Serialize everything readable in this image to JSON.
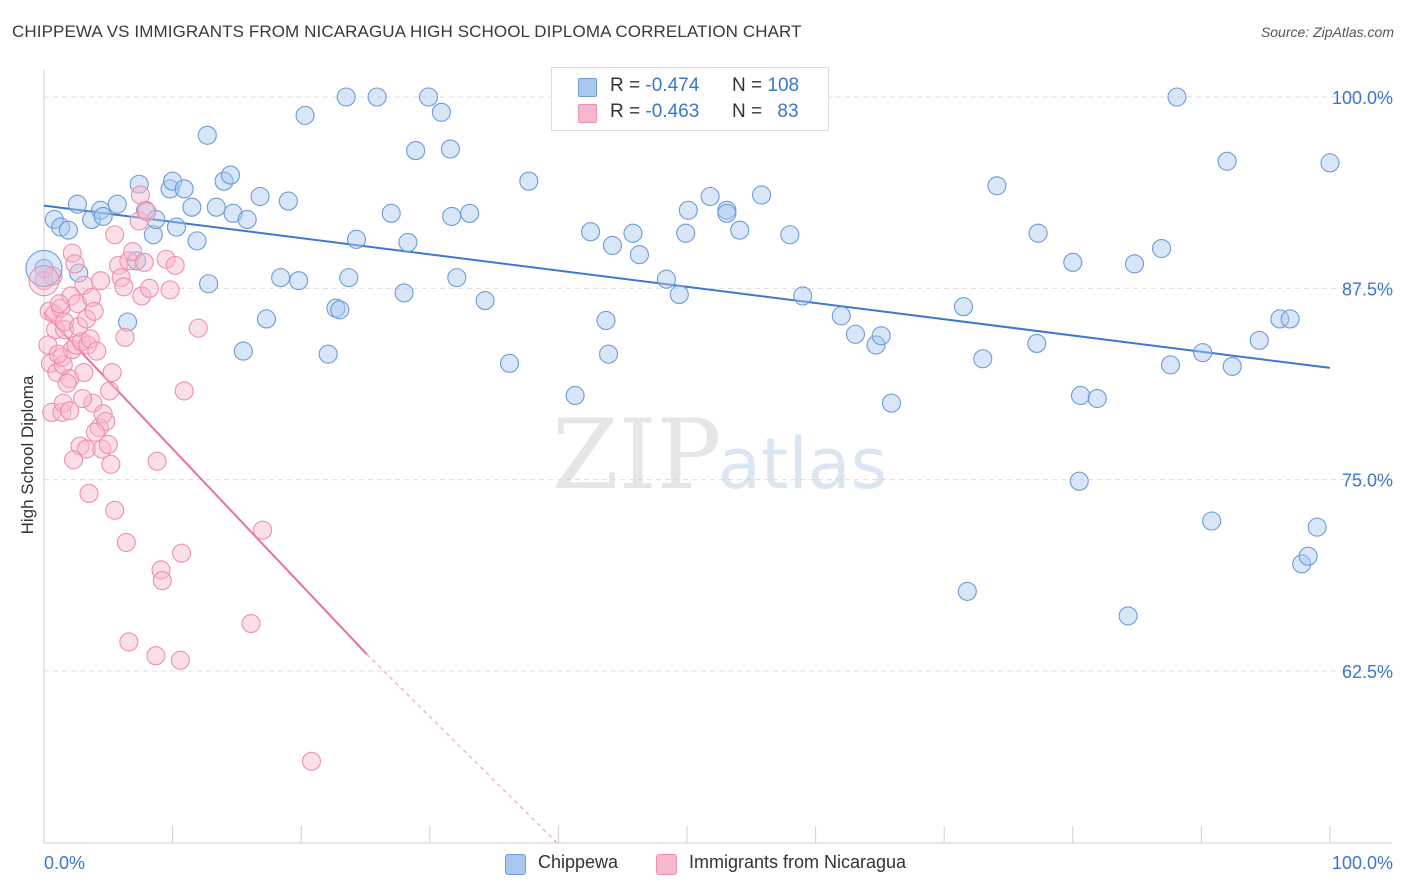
{
  "title": "CHIPPEWA VS IMMIGRANTS FROM NICARAGUA HIGH SCHOOL DIPLOMA CORRELATION CHART",
  "source": "Source: ZipAtlas.com",
  "legend": {
    "rows": [
      {
        "r_label": "R =",
        "r_value": "-0.474",
        "n_label": "N =",
        "n_value": "108"
      },
      {
        "r_label": "R =",
        "r_value": "-0.463",
        "n_label": "N =",
        "n_value": "83"
      }
    ]
  },
  "bottom_legend": {
    "series1": "Chippewa",
    "series2": "Immigrants from Nicaragua"
  },
  "watermark": {
    "part1": "ZIP",
    "part2": "atlas"
  },
  "colors": {
    "blue_fill": "#a9c8ef",
    "blue_stroke": "#6c9bd8",
    "blue_line": "#3d78cf",
    "pink_fill": "#f6b8cc",
    "pink_stroke": "#ee8fab",
    "pink_line": "#e8709a",
    "axis_value": "#3a76cc"
  },
  "chart_data": {
    "type": "scatter",
    "title": "CHIPPEWA VS IMMIGRANTS FROM NICARAGUA HIGH SCHOOL DIPLOMA CORRELATION CHART",
    "xlabel": "",
    "ylabel": "High School Diploma",
    "xlim": [
      0,
      100
    ],
    "ylim": [
      50.5,
      100.5
    ],
    "x_tick_labels": [
      "0.0%",
      "100.0%"
    ],
    "y_ticks": [
      100,
      87.5,
      75,
      62.5
    ],
    "y_tick_labels": [
      "100.0%",
      "87.5%",
      "75.0%",
      "62.5%"
    ],
    "grid": true,
    "legend_position": "top-center",
    "series": [
      {
        "name": "Chippewa",
        "color": "#a9c8ef",
        "trend": {
          "x": [
            0,
            100
          ],
          "y": [
            92.9,
            82.3
          ]
        },
        "points": [
          [
            0.0,
            88.8
          ],
          [
            0.8,
            92.0
          ],
          [
            1.3,
            91.5
          ],
          [
            1.9,
            91.3
          ],
          [
            2.6,
            93.0
          ],
          [
            2.7,
            88.5
          ],
          [
            3.7,
            92.0
          ],
          [
            4.4,
            92.6
          ],
          [
            4.6,
            92.2
          ],
          [
            5.7,
            93.0
          ],
          [
            6.5,
            85.3
          ],
          [
            7.2,
            89.3
          ],
          [
            7.4,
            94.3
          ],
          [
            7.9,
            92.6
          ],
          [
            8.5,
            91.0
          ],
          [
            8.7,
            92.0
          ],
          [
            9.8,
            94.0
          ],
          [
            10.0,
            94.5
          ],
          [
            10.3,
            91.5
          ],
          [
            10.9,
            94.0
          ],
          [
            11.5,
            92.8
          ],
          [
            11.9,
            90.6
          ],
          [
            12.7,
            97.5
          ],
          [
            12.8,
            87.8
          ],
          [
            13.4,
            92.8
          ],
          [
            14.0,
            94.5
          ],
          [
            14.5,
            94.9
          ],
          [
            14.7,
            92.4
          ],
          [
            15.5,
            83.4
          ],
          [
            15.8,
            92.0
          ],
          [
            16.8,
            93.5
          ],
          [
            17.3,
            85.5
          ],
          [
            18.4,
            88.2
          ],
          [
            19.0,
            93.2
          ],
          [
            19.8,
            88.0
          ],
          [
            20.3,
            98.8
          ],
          [
            22.1,
            83.2
          ],
          [
            22.7,
            86.2
          ],
          [
            23.0,
            86.1
          ],
          [
            23.5,
            100.0
          ],
          [
            23.7,
            88.2
          ],
          [
            24.3,
            90.7
          ],
          [
            25.9,
            100.0
          ],
          [
            27.0,
            92.4
          ],
          [
            28.0,
            87.2
          ],
          [
            28.3,
            90.5
          ],
          [
            28.9,
            96.5
          ],
          [
            29.9,
            100.0
          ],
          [
            30.9,
            99.0
          ],
          [
            31.6,
            96.6
          ],
          [
            31.7,
            92.2
          ],
          [
            32.1,
            88.2
          ],
          [
            33.1,
            92.4
          ],
          [
            34.3,
            86.7
          ],
          [
            36.2,
            82.6
          ],
          [
            37.7,
            94.5
          ],
          [
            41.3,
            80.5
          ],
          [
            42.5,
            91.2
          ],
          [
            43.7,
            85.4
          ],
          [
            43.9,
            83.2
          ],
          [
            44.2,
            90.3
          ],
          [
            45.8,
            91.1
          ],
          [
            46.3,
            89.7
          ],
          [
            48.4,
            88.1
          ],
          [
            49.4,
            87.1
          ],
          [
            49.9,
            91.1
          ],
          [
            50.1,
            92.6
          ],
          [
            51.8,
            93.5
          ],
          [
            53.1,
            92.6
          ],
          [
            53.1,
            92.4
          ],
          [
            54.1,
            91.3
          ],
          [
            55.8,
            93.6
          ],
          [
            58.0,
            91.0
          ],
          [
            59.0,
            87.0
          ],
          [
            62.0,
            85.7
          ],
          [
            63.1,
            84.5
          ],
          [
            64.7,
            83.8
          ],
          [
            65.1,
            84.4
          ],
          [
            65.9,
            80.0
          ],
          [
            71.5,
            86.3
          ],
          [
            71.8,
            67.7
          ],
          [
            73.0,
            82.9
          ],
          [
            74.1,
            94.2
          ],
          [
            77.2,
            83.9
          ],
          [
            77.3,
            91.1
          ],
          [
            80.0,
            89.2
          ],
          [
            80.5,
            74.9
          ],
          [
            80.6,
            80.5
          ],
          [
            81.9,
            80.3
          ],
          [
            84.3,
            66.1
          ],
          [
            84.8,
            89.1
          ],
          [
            86.9,
            90.1
          ],
          [
            87.6,
            82.5
          ],
          [
            88.1,
            100.0
          ],
          [
            90.1,
            83.3
          ],
          [
            90.8,
            72.3
          ],
          [
            92.0,
            95.8
          ],
          [
            92.4,
            82.4
          ],
          [
            94.5,
            84.1
          ],
          [
            96.1,
            85.5
          ],
          [
            96.9,
            85.5
          ],
          [
            97.8,
            69.5
          ],
          [
            98.3,
            70.0
          ],
          [
            99.0,
            71.9
          ],
          [
            100.0,
            95.7
          ]
        ]
      },
      {
        "name": "Immigrants from Nicaragua",
        "color": "#f6b8cc",
        "trend": {
          "x": [
            0,
            25.1
          ],
          "y": [
            85.9,
            63.6
          ]
        },
        "trend_dashed": {
          "x": [
            25.1,
            40.1
          ],
          "y": [
            63.6,
            51.1
          ]
        },
        "points": [
          [
            0.0,
            88.0
          ],
          [
            0.3,
            83.8
          ],
          [
            0.4,
            86.0
          ],
          [
            0.5,
            82.6
          ],
          [
            0.6,
            79.4
          ],
          [
            0.8,
            85.8
          ],
          [
            0.9,
            84.8
          ],
          [
            1.0,
            82.0
          ],
          [
            1.3,
            86.2
          ],
          [
            1.4,
            83.0
          ],
          [
            1.4,
            79.4
          ],
          [
            1.5,
            82.5
          ],
          [
            1.5,
            80.0
          ],
          [
            1.6,
            84.8
          ],
          [
            1.6,
            85.3
          ],
          [
            2.0,
            81.6
          ],
          [
            2.0,
            79.5
          ],
          [
            2.1,
            87.0
          ],
          [
            2.2,
            83.5
          ],
          [
            2.2,
            89.8
          ],
          [
            2.4,
            89.1
          ],
          [
            2.5,
            83.8
          ],
          [
            2.6,
            86.5
          ],
          [
            2.7,
            85.0
          ],
          [
            2.8,
            77.2
          ],
          [
            2.9,
            84.0
          ],
          [
            3.1,
            87.7
          ],
          [
            3.1,
            82.0
          ],
          [
            3.3,
            85.5
          ],
          [
            3.3,
            77.0
          ],
          [
            3.4,
            83.8
          ],
          [
            3.5,
            74.1
          ],
          [
            3.6,
            84.2
          ],
          [
            3.7,
            86.9
          ],
          [
            3.8,
            80.0
          ],
          [
            4.1,
            83.4
          ],
          [
            4.3,
            78.4
          ],
          [
            4.4,
            88.0
          ],
          [
            4.5,
            77.0
          ],
          [
            4.6,
            79.3
          ],
          [
            4.8,
            78.8
          ],
          [
            5.0,
            77.3
          ],
          [
            5.2,
            76.0
          ],
          [
            5.3,
            82.0
          ],
          [
            5.5,
            91.0
          ],
          [
            5.5,
            73.0
          ],
          [
            5.8,
            89.0
          ],
          [
            6.0,
            88.2
          ],
          [
            6.2,
            87.6
          ],
          [
            6.4,
            70.9
          ],
          [
            6.6,
            89.3
          ],
          [
            6.6,
            64.4
          ],
          [
            6.9,
            89.9
          ],
          [
            7.4,
            91.9
          ],
          [
            7.5,
            93.6
          ],
          [
            7.6,
            87.0
          ],
          [
            7.8,
            89.2
          ],
          [
            8.0,
            92.5
          ],
          [
            8.2,
            87.5
          ],
          [
            8.7,
            63.5
          ],
          [
            8.8,
            76.2
          ],
          [
            9.1,
            69.1
          ],
          [
            9.2,
            68.4
          ],
          [
            9.5,
            89.4
          ],
          [
            9.8,
            87.4
          ],
          [
            10.2,
            89.0
          ],
          [
            10.6,
            63.2
          ],
          [
            10.7,
            70.2
          ],
          [
            10.9,
            80.8
          ],
          [
            12.0,
            84.9
          ],
          [
            16.1,
            65.6
          ],
          [
            17.0,
            71.7
          ],
          [
            20.8,
            56.6
          ],
          [
            1.2,
            86.5
          ],
          [
            1.8,
            81.3
          ],
          [
            0.7,
            88.3
          ],
          [
            3.0,
            80.3
          ],
          [
            4.0,
            78.1
          ],
          [
            2.3,
            76.3
          ],
          [
            5.1,
            80.8
          ],
          [
            6.3,
            84.3
          ],
          [
            1.1,
            83.2
          ],
          [
            3.9,
            86.0
          ]
        ]
      }
    ]
  }
}
